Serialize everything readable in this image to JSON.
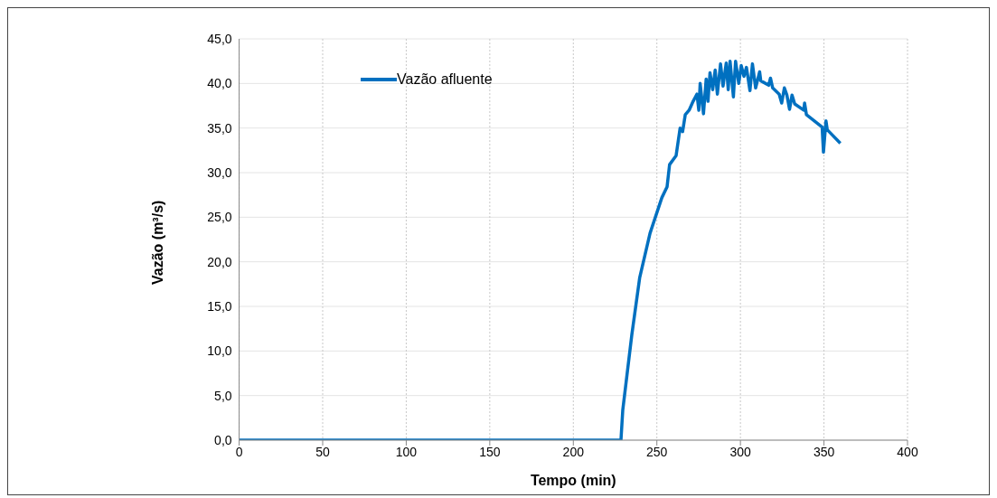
{
  "chart_data": {
    "type": "line",
    "xlabel": "Tempo (min)",
    "ylabel": "Vazão (m³/s)",
    "xlim": [
      0,
      400
    ],
    "xticks": [
      0,
      50,
      100,
      150,
      200,
      250,
      300,
      350,
      400
    ],
    "ylim": [
      0,
      45
    ],
    "yticks": [
      {
        "value": 0,
        "label": "0,0"
      },
      {
        "value": 5,
        "label": "5,0"
      },
      {
        "value": 10,
        "label": "10,0"
      },
      {
        "value": 15,
        "label": "15,0"
      },
      {
        "value": 20,
        "label": "20,0"
      },
      {
        "value": 25,
        "label": "25,0"
      },
      {
        "value": 30,
        "label": "30,0"
      },
      {
        "value": 35,
        "label": "35,0"
      },
      {
        "value": 40,
        "label": "40,0"
      },
      {
        "value": 45,
        "label": "45,0"
      }
    ],
    "grid": true,
    "legend": "top left",
    "marker": "none",
    "line_style": "solid",
    "x": [
      0,
      228.5,
      229.6,
      235,
      239.7,
      245.9,
      253,
      256.1,
      257.6,
      261.5,
      263.9,
      265.4,
      267,
      269.3,
      271.7,
      274,
      275.1,
      275.9,
      277.9,
      279.5,
      280.6,
      281.8,
      283.4,
      284.9,
      286.2,
      288.1,
      289.6,
      291.5,
      292.7,
      293.8,
      295.8,
      297.1,
      299,
      300.5,
      302.1,
      303.6,
      305.7,
      307.2,
      309.1,
      311.5,
      312.2,
      316.9,
      318,
      319.3,
      323.2,
      324.7,
      326.3,
      327.8,
      329.4,
      330.9,
      332.5,
      337.9,
      338.4,
      339.5,
      348.9,
      349.7,
      351.2,
      352,
      359.8
    ],
    "series": [
      {
        "name": "Vazão afluente",
        "color": "#0070c0",
        "values": [
          0,
          0,
          3.4,
          11.8,
          18.2,
          23.2,
          27.2,
          28.4,
          30.9,
          31.9,
          35,
          34.6,
          36.5,
          37,
          38,
          38.8,
          37,
          40,
          36.6,
          40.5,
          38,
          41.2,
          39.3,
          41.5,
          38.8,
          42.2,
          39.7,
          42.3,
          39.3,
          42.5,
          38.5,
          42.5,
          40,
          42,
          40.8,
          41.8,
          39.2,
          42.2,
          39.5,
          41.3,
          40.3,
          39.8,
          40.6,
          39.5,
          38.8,
          37.8,
          39.5,
          38.7,
          37.1,
          38.7,
          37.7,
          37,
          37.8,
          36.5,
          35.1,
          32.3,
          35.8,
          34.8,
          33.3
        ]
      }
    ]
  }
}
